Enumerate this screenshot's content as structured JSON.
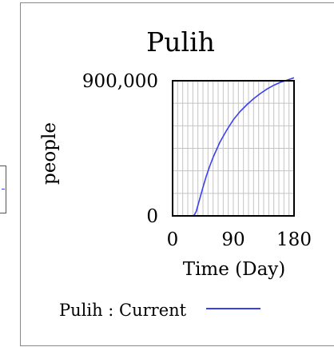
{
  "chart_data": {
    "type": "line",
    "title": "Pulih",
    "xlabel": "Time (Day)",
    "ylabel": "people",
    "xlim": [
      0,
      180
    ],
    "ylim": [
      0,
      900000
    ],
    "x_ticks": [
      "0",
      "90",
      "180"
    ],
    "y_ticks": [
      "0",
      "900,000"
    ],
    "grid": true,
    "legend_position": "bottom",
    "series": [
      {
        "name": "Pulih : Current",
        "color": "#3a3ff0",
        "x": [
          0,
          10,
          20,
          30,
          32,
          35,
          40,
          45,
          50,
          55,
          60,
          70,
          80,
          90,
          100,
          110,
          120,
          130,
          140,
          150,
          160,
          170,
          180
        ],
        "values": [
          0,
          0,
          0,
          0,
          5000,
          30000,
          110000,
          190000,
          265000,
          330000,
          390000,
          490000,
          570000,
          640000,
          695000,
          740000,
          780000,
          815000,
          845000,
          870000,
          890000,
          905000,
          920000
        ]
      }
    ]
  },
  "colors": {
    "frame": "#888888",
    "grid": "#c4c4c4",
    "axis": "#000000",
    "line": "#3a3ff0"
  }
}
